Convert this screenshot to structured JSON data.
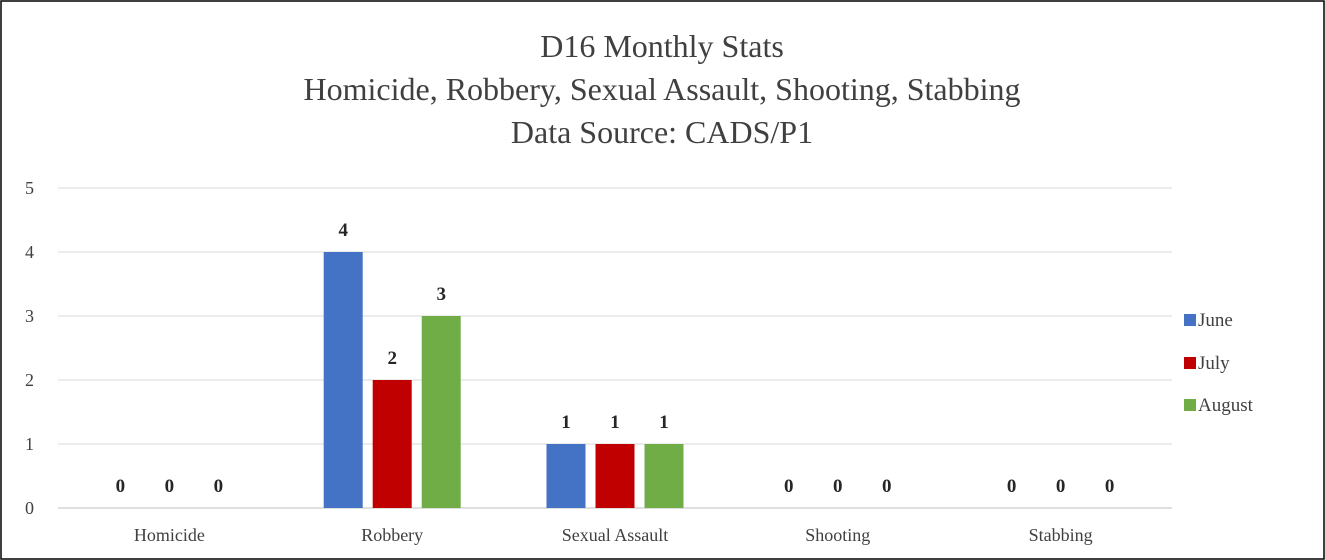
{
  "chart_data": {
    "type": "bar",
    "title_lines": [
      "D16 Monthly Stats",
      "Homicide, Robbery, Sexual Assault, Shooting, Stabbing",
      "Data Source: CADS/P1"
    ],
    "categories": [
      "Homicide",
      "Robbery",
      "Sexual Assault",
      "Shooting",
      "Stabbing"
    ],
    "series": [
      {
        "name": "June",
        "values": [
          0,
          4,
          1,
          0,
          0
        ],
        "color": "#4472C4"
      },
      {
        "name": "July",
        "values": [
          0,
          2,
          1,
          0,
          0
        ],
        "color": "#C00000"
      },
      {
        "name": "August",
        "values": [
          0,
          3,
          1,
          0,
          0
        ],
        "color": "#70AD47"
      }
    ],
    "ylim": [
      0,
      5
    ],
    "yticks": [
      0,
      1,
      2,
      3,
      4,
      5
    ],
    "grid": true,
    "data_labels": true,
    "legend_position": "right"
  }
}
